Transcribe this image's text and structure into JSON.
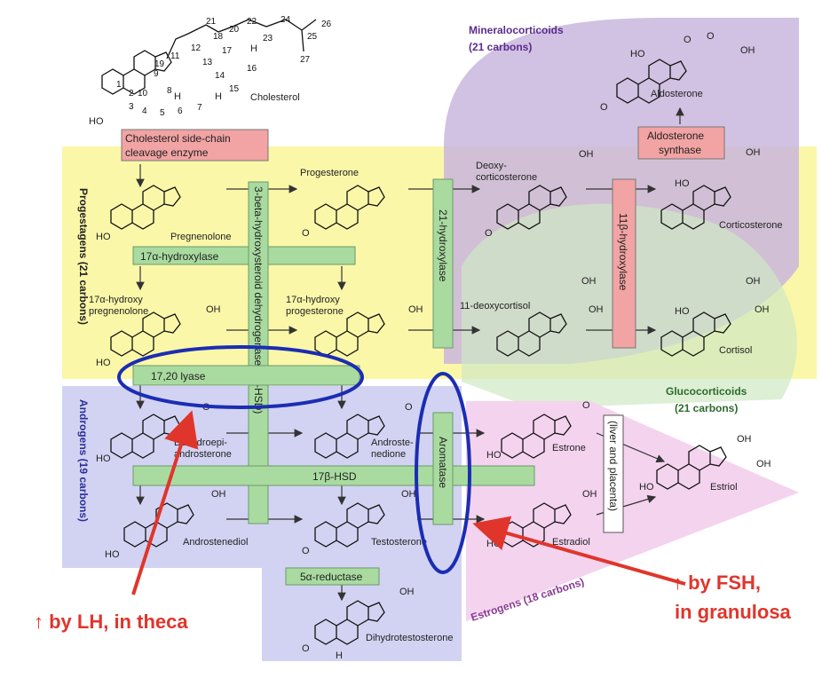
{
  "groups": {
    "mineralocorticoids": [
      "Mineralocorticoids",
      "(21 carbons)"
    ],
    "progestagens": "Progestagens (21 carbons)",
    "glucocorticoids": [
      "Glucocorticoids",
      "(21 carbons)"
    ],
    "androgens": "Androgens (19 carbons)",
    "estrogens": "Estrogens (18 carbons)"
  },
  "compounds": {
    "cholesterol": "Cholesterol",
    "pregnenolone": "Pregnenolone",
    "progesterone": "Progesterone",
    "deoxycorticosterone": [
      "Deoxy-",
      "corticosterone"
    ],
    "corticosterone": "Corticosterone",
    "aldosterone": "Aldosterone",
    "hydroxypregnenolone": [
      "17α-hydroxy",
      "pregnenolone"
    ],
    "hydroxyprogesterone": [
      "17α-hydroxy",
      "progesterone"
    ],
    "deoxycortisol": "11-deoxycortisol",
    "cortisol": "Cortisol",
    "dhea": [
      "Dehydroepi-",
      "androsterone"
    ],
    "androstenedione": [
      "Androste-",
      "nedione"
    ],
    "estrone": "Estrone",
    "estriol": "Estriol",
    "androstenediol": "Androstenediol",
    "testosterone": "Testosterone",
    "estradiol": "Estradiol",
    "dht": "Dihydrotestosterone"
  },
  "enzymes": {
    "scc": [
      "Cholesterol side-chain",
      "cleavage enzyme"
    ],
    "hydroxylase17": "17α-hydroxylase",
    "hsd3b": "3-beta-hydroxysteroid dehydrogenase (3β-HSD)",
    "hydroxylase21": "21-hydroxylase",
    "hydroxylase11b": "11β-hydroxylase",
    "aldo_synthase": [
      "Aldosterone",
      "synthase"
    ],
    "lyase": "17,20 lyase",
    "hsd17b": "17β-HSD",
    "aromatase": "Aromatase",
    "reductase5a": "5α-reductase",
    "liver": "(liver and placenta)"
  },
  "atoms": {
    "ho": "HO",
    "oh": "OH",
    "o": "O",
    "h": "H"
  },
  "carbon_numbers": [
    "1",
    "2",
    "3",
    "4",
    "5",
    "6",
    "7",
    "8",
    "9",
    "10",
    "11",
    "12",
    "13",
    "14",
    "15",
    "16",
    "17",
    "18",
    "19",
    "20",
    "21",
    "22",
    "23",
    "24",
    "25",
    "26",
    "27"
  ],
  "callouts": {
    "lh": "↑ by LH, in theca",
    "fsh": [
      "↑ by FSH,",
      "in granulosa"
    ]
  },
  "colors": {
    "progestagen_bg": "#fbf7a8",
    "mineralocorticoid_bg": "#c9b6dd",
    "glucocorticoid_bg": "#cfe8c3",
    "androgen_bg": "#d2d3f2",
    "estrogen_bg": "#f4d3ef",
    "enzyme_green": "#a9dba0",
    "enzyme_pink": "#f2a3a3",
    "highlight_blue": "#1b2db3",
    "callout_red": "#e0352b",
    "mineral_text": "#5b2c8d",
    "gluco_text": "#2d6b2d",
    "androgen_text": "#2b2f9a",
    "estrogen_text": "#8a3a94"
  }
}
